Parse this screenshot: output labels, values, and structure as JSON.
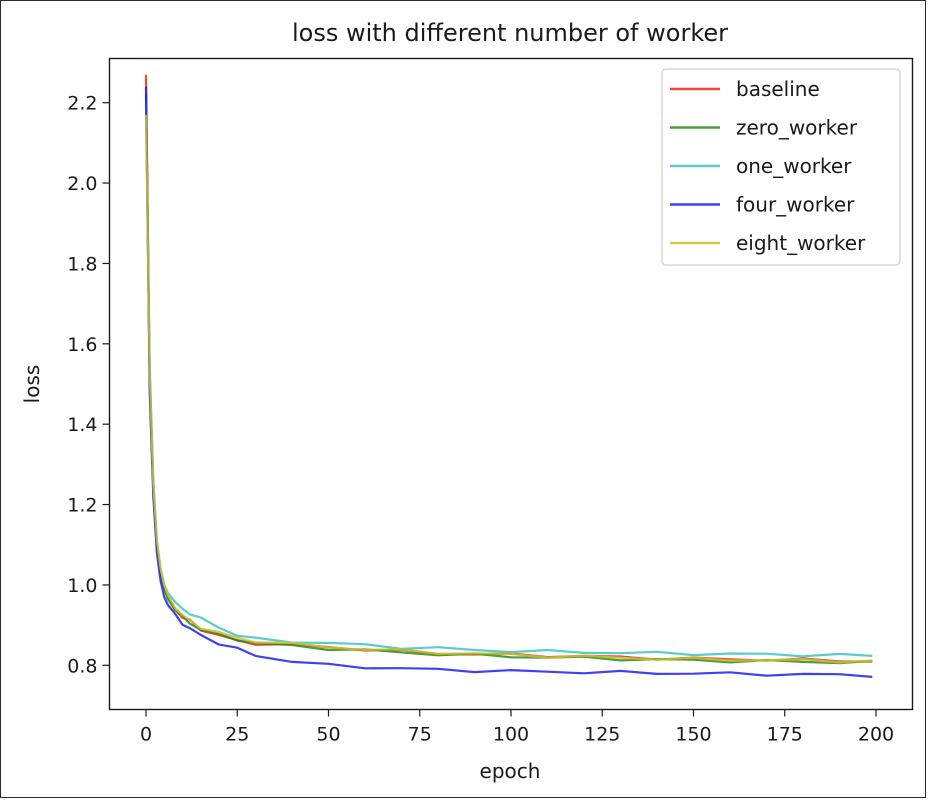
{
  "chart_data": {
    "type": "line",
    "title": "loss with different number of worker",
    "xlabel": "epoch",
    "ylabel": "loss",
    "xlim": [
      -10,
      210
    ],
    "ylim": [
      0.69,
      2.31
    ],
    "xticks": [
      0,
      25,
      50,
      75,
      100,
      125,
      150,
      175,
      200
    ],
    "xtick_labels": [
      "0",
      "25",
      "50",
      "75",
      "100",
      "125",
      "150",
      "175",
      "200"
    ],
    "yticks": [
      0.8,
      1.0,
      1.2,
      1.4,
      1.6,
      1.8,
      2.0,
      2.2
    ],
    "ytick_labels": [
      "0.8",
      "1.0",
      "1.2",
      "1.4",
      "1.6",
      "1.8",
      "2.0",
      "2.2"
    ],
    "grid": false,
    "legend_position": "top-right",
    "x": [
      0,
      1,
      2,
      3,
      4,
      5,
      6,
      8,
      10,
      12,
      15,
      20,
      25,
      30,
      40,
      50,
      60,
      70,
      80,
      90,
      100,
      110,
      120,
      130,
      140,
      150,
      160,
      170,
      180,
      190,
      199
    ],
    "series": [
      {
        "name": "baseline",
        "color": "#e8281e",
        "values": [
          2.27,
          1.52,
          1.25,
          1.1,
          1.03,
          0.99,
          0.97,
          0.94,
          0.92,
          0.91,
          0.89,
          0.875,
          0.86,
          0.855,
          0.85,
          0.845,
          0.84,
          0.835,
          0.83,
          0.828,
          0.826,
          0.824,
          0.822,
          0.82,
          0.818,
          0.816,
          0.815,
          0.814,
          0.813,
          0.812,
          0.81
        ]
      },
      {
        "name": "zero_worker",
        "color": "#2e8b1e",
        "values": [
          2.22,
          1.5,
          1.24,
          1.1,
          1.03,
          0.99,
          0.965,
          0.94,
          0.92,
          0.905,
          0.89,
          0.875,
          0.865,
          0.855,
          0.848,
          0.842,
          0.837,
          0.832,
          0.828,
          0.825,
          0.822,
          0.82,
          0.818,
          0.816,
          0.814,
          0.812,
          0.811,
          0.81,
          0.809,
          0.808,
          0.807
        ]
      },
      {
        "name": "one_worker",
        "color": "#3cc2c9",
        "values": [
          2.2,
          1.55,
          1.26,
          1.11,
          1.04,
          1.0,
          0.98,
          0.955,
          0.94,
          0.93,
          0.915,
          0.895,
          0.875,
          0.865,
          0.86,
          0.855,
          0.85,
          0.845,
          0.842,
          0.838,
          0.836,
          0.834,
          0.833,
          0.831,
          0.83,
          0.829,
          0.828,
          0.827,
          0.826,
          0.825,
          0.824
        ]
      },
      {
        "name": "four_worker",
        "color": "#1f1ff0",
        "values": [
          2.24,
          1.48,
          1.22,
          1.08,
          1.01,
          0.97,
          0.95,
          0.925,
          0.905,
          0.89,
          0.875,
          0.855,
          0.84,
          0.825,
          0.81,
          0.8,
          0.796,
          0.792,
          0.789,
          0.787,
          0.785,
          0.784,
          0.783,
          0.782,
          0.781,
          0.78,
          0.779,
          0.778,
          0.777,
          0.776,
          0.775
        ]
      },
      {
        "name": "eight_worker",
        "color": "#c9c42a",
        "values": [
          2.17,
          1.53,
          1.25,
          1.11,
          1.04,
          1.0,
          0.975,
          0.945,
          0.925,
          0.91,
          0.895,
          0.88,
          0.868,
          0.86,
          0.852,
          0.846,
          0.84,
          0.836,
          0.832,
          0.829,
          0.826,
          0.823,
          0.821,
          0.819,
          0.817,
          0.815,
          0.814,
          0.813,
          0.812,
          0.811,
          0.81
        ]
      }
    ]
  }
}
